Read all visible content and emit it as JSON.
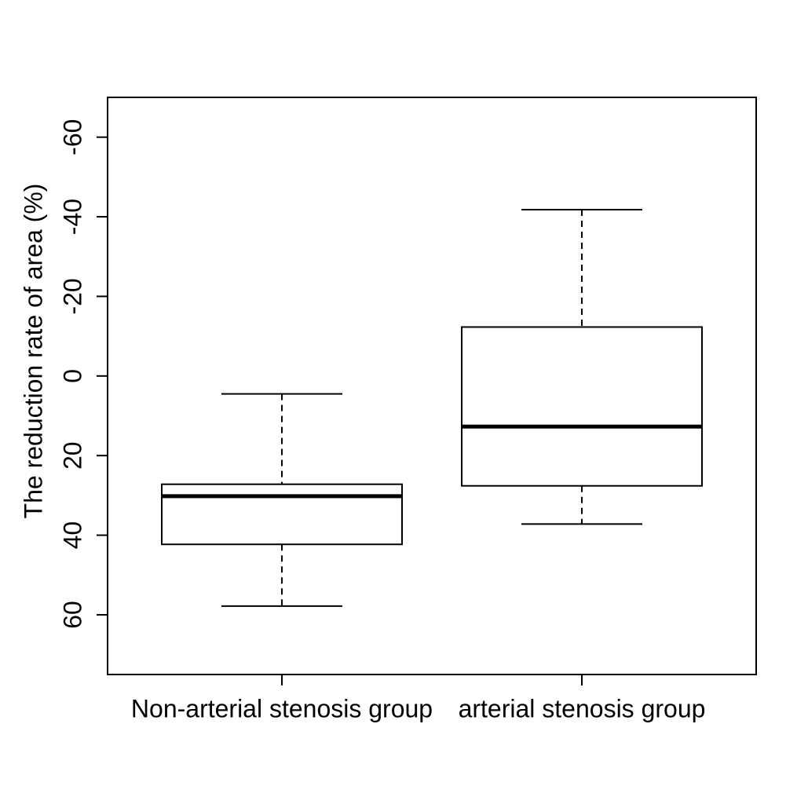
{
  "chart_data": {
    "type": "boxplot",
    "title": "",
    "xlabel": "",
    "ylabel": "The reduction rate of area (%)",
    "ylim": [
      75,
      -70
    ],
    "y_inverted": true,
    "yticks": [
      -60,
      -40,
      -20,
      0,
      20,
      40,
      60
    ],
    "ytick_labels": [
      "-60",
      "-40",
      "-20",
      "0",
      "20",
      "40",
      "60"
    ],
    "categories": [
      "Non-arterial stenosis group",
      "arterial stenosis group"
    ],
    "boxes": [
      {
        "category": "Non-arterial stenosis group",
        "whisker_low": 4.5,
        "q1": 27.2,
        "median": 30.2,
        "q3": 42.3,
        "whisker_high": 57.8
      },
      {
        "category": "arterial stenosis group",
        "whisker_low": -41.8,
        "q1": -12.3,
        "median": 12.7,
        "q3": 27.6,
        "whisker_high": 37.2
      }
    ],
    "grid": false,
    "legend": "none"
  }
}
